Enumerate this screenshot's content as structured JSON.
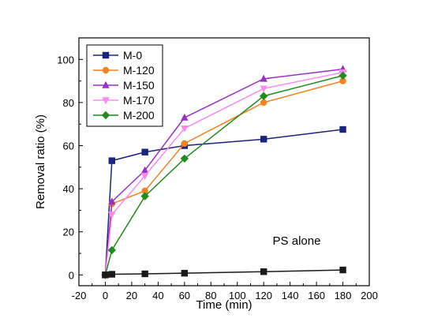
{
  "chart_data": {
    "type": "line",
    "xlabel": "Time (min)",
    "ylabel": "Removal ratio (%)",
    "xlim": [
      -20,
      200
    ],
    "ylim": [
      -5,
      110
    ],
    "x_ticks": [
      -20,
      0,
      20,
      40,
      60,
      80,
      100,
      120,
      140,
      160,
      180,
      200
    ],
    "y_ticks": [
      0,
      20,
      40,
      60,
      80,
      100
    ],
    "grid": false,
    "legend_position": "top-left",
    "series": [
      {
        "name": "M-0",
        "color": "#1a237e",
        "marker": "square",
        "points": [
          [
            0,
            0
          ],
          [
            5,
            53
          ],
          [
            30,
            57
          ],
          [
            60,
            60
          ],
          [
            120,
            63
          ],
          [
            180,
            67.5
          ]
        ]
      },
      {
        "name": "M-120",
        "color": "#f58220",
        "marker": "circle",
        "points": [
          [
            0,
            0
          ],
          [
            5,
            33
          ],
          [
            30,
            39
          ],
          [
            60,
            61
          ],
          [
            120,
            80
          ],
          [
            180,
            90
          ]
        ]
      },
      {
        "name": "M-150",
        "color": "#9b30c8",
        "marker": "triangle-up",
        "points": [
          [
            0,
            0
          ],
          [
            5,
            34
          ],
          [
            30,
            48.5
          ],
          [
            60,
            73
          ],
          [
            120,
            91
          ],
          [
            180,
            95.5
          ]
        ]
      },
      {
        "name": "M-170",
        "color": "#ff88f0",
        "marker": "triangle-down",
        "points": [
          [
            0,
            0
          ],
          [
            5,
            28
          ],
          [
            30,
            46
          ],
          [
            60,
            68
          ],
          [
            120,
            86.5
          ],
          [
            180,
            94
          ]
        ]
      },
      {
        "name": "M-200",
        "color": "#1e8c1e",
        "marker": "diamond",
        "points": [
          [
            0,
            0
          ],
          [
            5,
            11.5
          ],
          [
            30,
            36.5
          ],
          [
            60,
            54
          ],
          [
            120,
            83
          ],
          [
            180,
            92.5
          ]
        ]
      },
      {
        "name": "",
        "color": "#1a1a1a",
        "marker": "square",
        "points": [
          [
            0,
            0
          ],
          [
            5,
            0.3
          ],
          [
            30,
            0.5
          ],
          [
            60,
            0.8
          ],
          [
            120,
            1.5
          ],
          [
            180,
            2.3
          ]
        ]
      }
    ],
    "annotations": [
      {
        "text": "PS alone",
        "x": 145,
        "y": 14
      }
    ]
  }
}
